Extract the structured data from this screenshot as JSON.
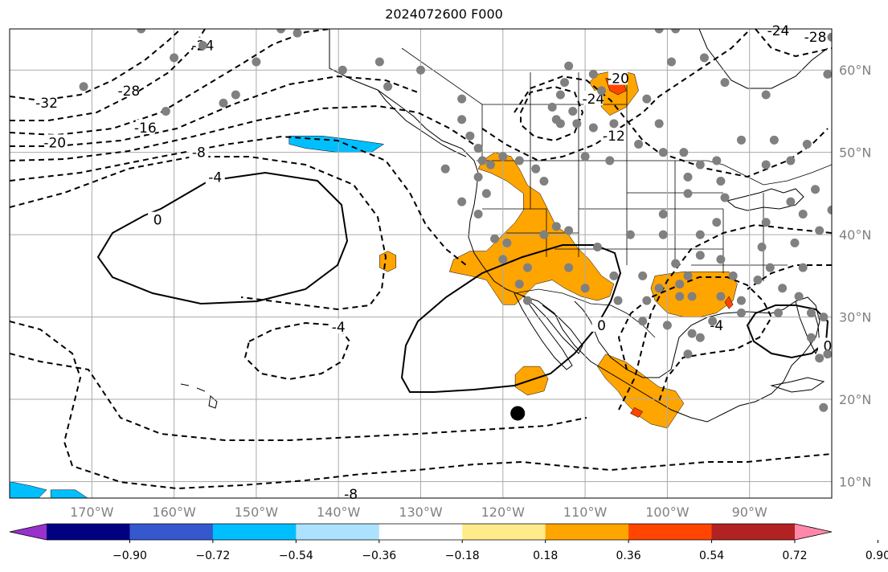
{
  "title": "2024072600 F000",
  "map": {
    "longitude_labels": [
      "170°W",
      "160°W",
      "150°W",
      "140°W",
      "130°W",
      "120°W",
      "110°W",
      "100°W",
      "90°W"
    ],
    "latitude_labels": [
      "60°N",
      "50°N",
      "40°N",
      "30°N",
      "20°N",
      "10°N"
    ],
    "longitude_values": [
      -170,
      -160,
      -150,
      -140,
      -130,
      -120,
      -110,
      -100,
      -90
    ],
    "latitude_values": [
      60,
      50,
      40,
      30,
      20,
      10
    ],
    "extent": {
      "lon_min": -180,
      "lon_max": -80,
      "lat_min": 8,
      "lat_max": 65
    },
    "projection": "PlateCarree",
    "gridlines": true,
    "contour_style": "dashed for negative, solid for zero",
    "contour_labels": [
      {
        "text": "-32",
        "lon": -175.5,
        "lat": 56.0
      },
      {
        "text": "-28",
        "lon": -165.5,
        "lat": 57.5
      },
      {
        "text": "-24",
        "lon": -156.5,
        "lat": 63.0
      },
      {
        "text": "-20",
        "lon": -174.5,
        "lat": 51.2
      },
      {
        "text": "-16",
        "lon": -163.5,
        "lat": 53.0
      },
      {
        "text": "-8",
        "lon": -157.0,
        "lat": 50.0
      },
      {
        "text": "-4",
        "lon": -155.0,
        "lat": 47.0
      },
      {
        "text": "0",
        "lon": -162.0,
        "lat": 41.8
      },
      {
        "text": "-4",
        "lon": -140.0,
        "lat": 28.8
      },
      {
        "text": "-8",
        "lon": -138.5,
        "lat": 8.5
      },
      {
        "text": "-20",
        "lon": -106.0,
        "lat": 59.0
      },
      {
        "text": "-24",
        "lon": -109.0,
        "lat": 56.5
      },
      {
        "text": "-12",
        "lon": -106.5,
        "lat": 52.0
      },
      {
        "text": "0",
        "lon": -108.0,
        "lat": 29.0
      },
      {
        "text": "-4",
        "lon": -94.0,
        "lat": 29.0
      },
      {
        "text": "0",
        "lon": -80.5,
        "lat": 26.5
      },
      {
        "text": "-28",
        "lon": -82.0,
        "lat": 64.0
      },
      {
        "text": "-24",
        "lon": -86.5,
        "lat": 64.8
      }
    ],
    "marker_color": "#808080",
    "highlight_marker": {
      "lon": -118.2,
      "lat": 18.3,
      "color": "#000000"
    },
    "stations": [
      [
        -171.0,
        58.0
      ],
      [
        -164.0,
        65.0
      ],
      [
        -160.0,
        61.5
      ],
      [
        -161.0,
        55.0
      ],
      [
        -156.5,
        63.0
      ],
      [
        -154.0,
        56.0
      ],
      [
        -152.5,
        57.0
      ],
      [
        -150.0,
        61.0
      ],
      [
        -147.0,
        65.0
      ],
      [
        -145.0,
        64.5
      ],
      [
        -139.5,
        60.0
      ],
      [
        -135.0,
        61.0
      ],
      [
        -130.0,
        60.0
      ],
      [
        -125.0,
        56.5
      ],
      [
        -125.0,
        54.0
      ],
      [
        -124.0,
        52.0
      ],
      [
        -123.0,
        50.5
      ],
      [
        -122.5,
        49.0
      ],
      [
        -121.5,
        48.5
      ],
      [
        -123.0,
        47.0
      ],
      [
        -122.0,
        45.0
      ],
      [
        -123.0,
        42.5
      ],
      [
        -120.0,
        49.5
      ],
      [
        -118.0,
        49.0
      ],
      [
        -116.0,
        48.0
      ],
      [
        -115.0,
        46.5
      ],
      [
        -121.0,
        39.5
      ],
      [
        -120.0,
        37.0
      ],
      [
        -118.0,
        34.0
      ],
      [
        -117.0,
        36.0
      ],
      [
        -115.0,
        40.0
      ],
      [
        -113.5,
        41.0
      ],
      [
        -112.0,
        36.0
      ],
      [
        -110.0,
        33.5
      ],
      [
        -112.0,
        40.5
      ],
      [
        -108.5,
        38.5
      ],
      [
        -110.0,
        49.5
      ],
      [
        -111.0,
        53.5
      ],
      [
        -113.5,
        54.0
      ],
      [
        -114.0,
        55.5
      ],
      [
        -113.0,
        53.5
      ],
      [
        -111.5,
        55.0
      ],
      [
        -109.0,
        53.0
      ],
      [
        -106.5,
        53.5
      ],
      [
        -107.0,
        49.0
      ],
      [
        -103.5,
        51.0
      ],
      [
        -101.0,
        53.5
      ],
      [
        -102.5,
        56.5
      ],
      [
        -100.5,
        50.0
      ],
      [
        -98.0,
        50.0
      ],
      [
        -97.5,
        47.0
      ],
      [
        -96.0,
        48.5
      ],
      [
        -94.0,
        49.0
      ],
      [
        -93.5,
        46.5
      ],
      [
        -97.5,
        45.0
      ],
      [
        -100.5,
        42.5
      ],
      [
        -100.5,
        40.0
      ],
      [
        -104.5,
        40.0
      ],
      [
        -106.5,
        35.0
      ],
      [
        -103.0,
        35.0
      ],
      [
        -106.0,
        32.0
      ],
      [
        -102.5,
        32.0
      ],
      [
        -101.0,
        33.5
      ],
      [
        -99.0,
        36.5
      ],
      [
        -97.5,
        35.0
      ],
      [
        -97.0,
        32.5
      ],
      [
        -98.5,
        34.0
      ],
      [
        -96.0,
        37.5
      ],
      [
        -96.0,
        40.0
      ],
      [
        -94.0,
        41.5
      ],
      [
        -93.0,
        44.5
      ],
      [
        -93.5,
        37.0
      ],
      [
        -92.0,
        35.0
      ],
      [
        -93.5,
        32.5
      ],
      [
        -91.0,
        30.5
      ],
      [
        -94.5,
        29.5
      ],
      [
        -97.0,
        28.0
      ],
      [
        -97.5,
        25.5
      ],
      [
        -100.0,
        29.0
      ],
      [
        -103.0,
        29.5
      ],
      [
        -91.0,
        32.0
      ],
      [
        -89.0,
        34.5
      ],
      [
        -87.5,
        36.0
      ],
      [
        -88.5,
        38.5
      ],
      [
        -88.0,
        41.5
      ],
      [
        -85.0,
        44.0
      ],
      [
        -83.5,
        42.5
      ],
      [
        -84.5,
        39.0
      ],
      [
        -86.0,
        33.5
      ],
      [
        -84.0,
        32.5
      ],
      [
        -86.5,
        30.5
      ],
      [
        -82.5,
        27.5
      ],
      [
        -81.5,
        25.0
      ],
      [
        -80.5,
        25.5
      ],
      [
        -81.0,
        30.0
      ],
      [
        -82.5,
        30.5
      ],
      [
        -83.5,
        36.0
      ],
      [
        -81.5,
        40.5
      ],
      [
        -80.0,
        43.0
      ],
      [
        -82.0,
        45.5
      ],
      [
        -88.0,
        48.5
      ],
      [
        -85.0,
        49.0
      ],
      [
        -83.0,
        51.0
      ],
      [
        -80.5,
        59.5
      ],
      [
        -88.0,
        57.0
      ],
      [
        -91.0,
        51.5
      ],
      [
        -93.0,
        58.5
      ],
      [
        -95.5,
        61.5
      ],
      [
        -99.5,
        61.0
      ],
      [
        -112.5,
        58.5
      ],
      [
        -113.0,
        57.0
      ],
      [
        -109.0,
        59.5
      ],
      [
        -108.0,
        57.5
      ],
      [
        -112.0,
        60.5
      ],
      [
        -99.0,
        65.0
      ],
      [
        -101.0,
        65.0
      ],
      [
        -80.0,
        64.0
      ],
      [
        -79.0,
        50.5
      ],
      [
        -87.0,
        51.5
      ],
      [
        -81.0,
        19.0
      ],
      [
        -96.0,
        27.5
      ],
      [
        -98.5,
        32.5
      ],
      [
        -117.0,
        32.0
      ],
      [
        -119.5,
        39.0
      ],
      [
        -125.0,
        44.0
      ],
      [
        -127.0,
        48.0
      ],
      [
        -134.0,
        58.0
      ]
    ],
    "shaded_regions": [
      {
        "category": "0.36-0.54",
        "color": "#FFA500",
        "polygons": [
          [
            [
              -122.5,
              49.0
            ],
            [
              -121.0,
              50.0
            ],
            [
              -119.0,
              49.5
            ],
            [
              -118.0,
              48.0
            ],
            [
              -117.0,
              46.0
            ],
            [
              -115.5,
              45.0
            ],
            [
              -114.5,
              43.0
            ],
            [
              -113.5,
              41.0
            ],
            [
              -112.0,
              40.0
            ],
            [
              -111.0,
              38.5
            ],
            [
              -109.5,
              37.0
            ],
            [
              -108.0,
              35.0
            ],
            [
              -106.5,
              34.0
            ],
            [
              -107.0,
              32.5
            ],
            [
              -108.5,
              32.0
            ],
            [
              -110.5,
              32.5
            ],
            [
              -112.5,
              33.5
            ],
            [
              -114.0,
              34.5
            ],
            [
              -116.0,
              34.0
            ],
            [
              -117.5,
              32.5
            ],
            [
              -118.5,
              31.5
            ],
            [
              -120.0,
              31.5
            ],
            [
              -121.0,
              33.0
            ],
            [
              -122.0,
              34.5
            ],
            [
              -124.0,
              35.0
            ],
            [
              -126.5,
              35.5
            ],
            [
              -126.0,
              37.0
            ],
            [
              -124.0,
              38.0
            ],
            [
              -122.0,
              38.0
            ],
            [
              -120.0,
              40.0
            ],
            [
              -118.5,
              41.5
            ],
            [
              -117.5,
              43.0
            ],
            [
              -117.5,
              45.0
            ],
            [
              -119.5,
              46.5
            ],
            [
              -121.5,
              47.5
            ],
            [
              -123.0,
              48.0
            ],
            [
              -122.5,
              49.0
            ]
          ],
          [
            [
              -134.0,
              38.0
            ],
            [
              -133.0,
              37.5
            ],
            [
              -133.0,
              36.0
            ],
            [
              -134.0,
              35.5
            ],
            [
              -135.0,
              36.0
            ],
            [
              -135.0,
              37.5
            ],
            [
              -134.0,
              38.0
            ]
          ],
          [
            [
              -117.5,
              24.0
            ],
            [
              -115.5,
              24.0
            ],
            [
              -114.5,
              22.5
            ],
            [
              -115.0,
              21.0
            ],
            [
              -117.0,
              20.5
            ],
            [
              -118.5,
              21.5
            ],
            [
              -118.5,
              23.0
            ],
            [
              -117.5,
              24.0
            ]
          ],
          [
            [
              -107.5,
              25.5
            ],
            [
              -105.0,
              24.5
            ],
            [
              -103.0,
              23.0
            ],
            [
              -101.0,
              21.5
            ],
            [
              -99.0,
              21.0
            ],
            [
              -98.0,
              19.5
            ],
            [
              -99.0,
              18.0
            ],
            [
              -100.0,
              16.5
            ],
            [
              -102.0,
              17.0
            ],
            [
              -103.5,
              18.0
            ],
            [
              -105.0,
              19.5
            ],
            [
              -106.0,
              21.0
            ],
            [
              -107.5,
              22.5
            ],
            [
              -108.5,
              24.0
            ],
            [
              -107.5,
              25.5
            ]
          ],
          [
            [
              -101.5,
              35.0
            ],
            [
              -98.0,
              35.5
            ],
            [
              -95.0,
              35.5
            ],
            [
              -92.5,
              35.5
            ],
            [
              -91.5,
              34.0
            ],
            [
              -92.0,
              32.0
            ],
            [
              -94.0,
              30.5
            ],
            [
              -96.0,
              30.0
            ],
            [
              -98.0,
              30.0
            ],
            [
              -100.0,
              30.5
            ],
            [
              -101.5,
              32.0
            ],
            [
              -102.0,
              33.5
            ],
            [
              -101.5,
              35.0
            ]
          ],
          [
            [
              -108.5,
              59.5
            ],
            [
              -106.0,
              60.0
            ],
            [
              -104.0,
              59.5
            ],
            [
              -103.5,
              57.5
            ],
            [
              -105.0,
              55.5
            ],
            [
              -107.0,
              54.5
            ],
            [
              -108.0,
              55.5
            ],
            [
              -108.5,
              57.0
            ],
            [
              -109.5,
              58.5
            ],
            [
              -108.5,
              59.5
            ]
          ]
        ]
      },
      {
        "category": "0.54-0.72",
        "color": "#FF4500",
        "polygons": [
          [
            [
              -107.5,
              59.0
            ],
            [
              -105.5,
              59.0
            ],
            [
              -105.0,
              57.5
            ],
            [
              -106.0,
              57.0
            ],
            [
              -107.0,
              57.5
            ],
            [
              -107.5,
              59.0
            ]
          ],
          [
            [
              -92.5,
              32.5
            ],
            [
              -92.0,
              31.5
            ],
            [
              -92.5,
              31.0
            ],
            [
              -93.0,
              31.8
            ],
            [
              -92.5,
              32.5
            ]
          ],
          [
            [
              -104.0,
              19.0
            ],
            [
              -103.0,
              18.5
            ],
            [
              -103.5,
              17.8
            ],
            [
              -104.5,
              18.3
            ],
            [
              -104.0,
              19.0
            ]
          ]
        ]
      },
      {
        "category": "-0.54 to -0.36",
        "color": "#00BFFF",
        "polygons": [
          [
            [
              -146.0,
              52.0
            ],
            [
              -142.0,
              52.0
            ],
            [
              -138.0,
              51.5
            ],
            [
              -134.5,
              51.0
            ],
            [
              -136.0,
              50.0
            ],
            [
              -140.0,
              50.0
            ],
            [
              -144.0,
              50.5
            ],
            [
              -146.0,
              51.0
            ],
            [
              -146.0,
              52.0
            ]
          ],
          [
            [
              -180.0,
              10.0
            ],
            [
              -177.5,
              9.5
            ],
            [
              -175.5,
              9.0
            ],
            [
              -176.5,
              8.0
            ],
            [
              -180.0,
              8.0
            ],
            [
              -180.0,
              10.0
            ]
          ],
          [
            [
              -175.0,
              9.0
            ],
            [
              -172.0,
              9.0
            ],
            [
              -170.5,
              8.0
            ],
            [
              -175.0,
              8.0
            ],
            [
              -175.0,
              9.0
            ]
          ]
        ]
      }
    ]
  },
  "colorbar": {
    "tick_labels": [
      "−0.90",
      "−0.72",
      "−0.54",
      "−0.36",
      "−0.18",
      "0.18",
      "0.36",
      "0.54",
      "0.72",
      "0.90"
    ],
    "levels": [
      -0.9,
      -0.72,
      -0.54,
      -0.36,
      -0.18,
      0.18,
      0.36,
      0.54,
      0.72,
      0.9
    ],
    "colors": [
      "#9932CC",
      "#000080",
      "#3558CF",
      "#00BFFF",
      "#ADE2FF",
      "#FFFFFF",
      "#FFEB8A",
      "#FFA500",
      "#FF4500",
      "#B22222",
      "#FF88AA"
    ]
  }
}
